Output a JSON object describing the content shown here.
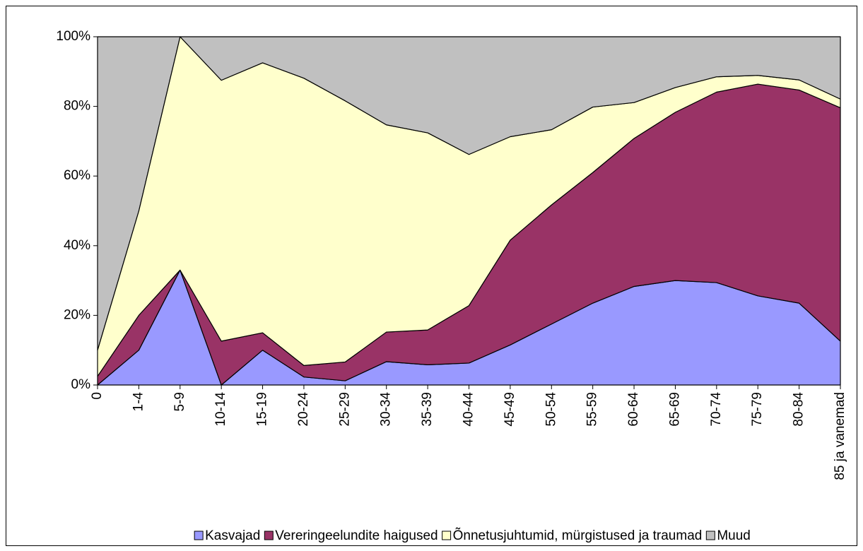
{
  "chart_data": {
    "type": "stacked_area",
    "categories": [
      "0",
      "1-4",
      "5-9",
      "10-14",
      "15-19",
      "20-24",
      "25-29",
      "30-34",
      "35-39",
      "40-44",
      "45-49",
      "50-54",
      "55-59",
      "60-64",
      "65-69",
      "70-74",
      "75-79",
      "80-84",
      "85 ja vanemad"
    ],
    "series": [
      {
        "name": "Kasvajad",
        "color": "#9999ff",
        "values": [
          0,
          10,
          33,
          0,
          10,
          2.3,
          1.2,
          6.7,
          5.8,
          6.3,
          11.5,
          17.5,
          23.5,
          28.3,
          30,
          29.4,
          25.6,
          23.5,
          12.6
        ]
      },
      {
        "name": "Vereringeelundite haigused",
        "color": "#993366",
        "values": [
          2.5,
          10,
          0,
          12.6,
          5,
          3.3,
          5.4,
          8.5,
          10,
          16.5,
          30.1,
          34.2,
          37.5,
          42.5,
          48.3,
          54.7,
          60.8,
          61.2,
          67
        ]
      },
      {
        "name": "Õnnetusjuhtumid, mürgistused ja traumad",
        "color": "#ffffcc",
        "values": [
          7.5,
          30,
          67,
          74.9,
          77.5,
          82.5,
          75,
          59.5,
          56.6,
          43.4,
          29.7,
          21.6,
          18.8,
          10.3,
          7.1,
          4.4,
          2.5,
          2.9,
          2.5
        ]
      },
      {
        "name": "Muud",
        "color": "#c0c0c0",
        "values": [
          90,
          50,
          0,
          12.5,
          7.5,
          11.9,
          18.4,
          25.3,
          27.6,
          33.8,
          28.7,
          26.7,
          20.2,
          18.9,
          14.6,
          11.5,
          11.1,
          12.4,
          17.9
        ]
      }
    ],
    "ylim": [
      0,
      100
    ],
    "yticks": [
      {
        "value": 0,
        "label": "0%"
      },
      {
        "value": 20,
        "label": "20%"
      },
      {
        "value": 40,
        "label": "40%"
      },
      {
        "value": 60,
        "label": "60%"
      },
      {
        "value": 80,
        "label": "80%"
      },
      {
        "value": 100,
        "label": "100%"
      }
    ],
    "legend": "bottom"
  }
}
